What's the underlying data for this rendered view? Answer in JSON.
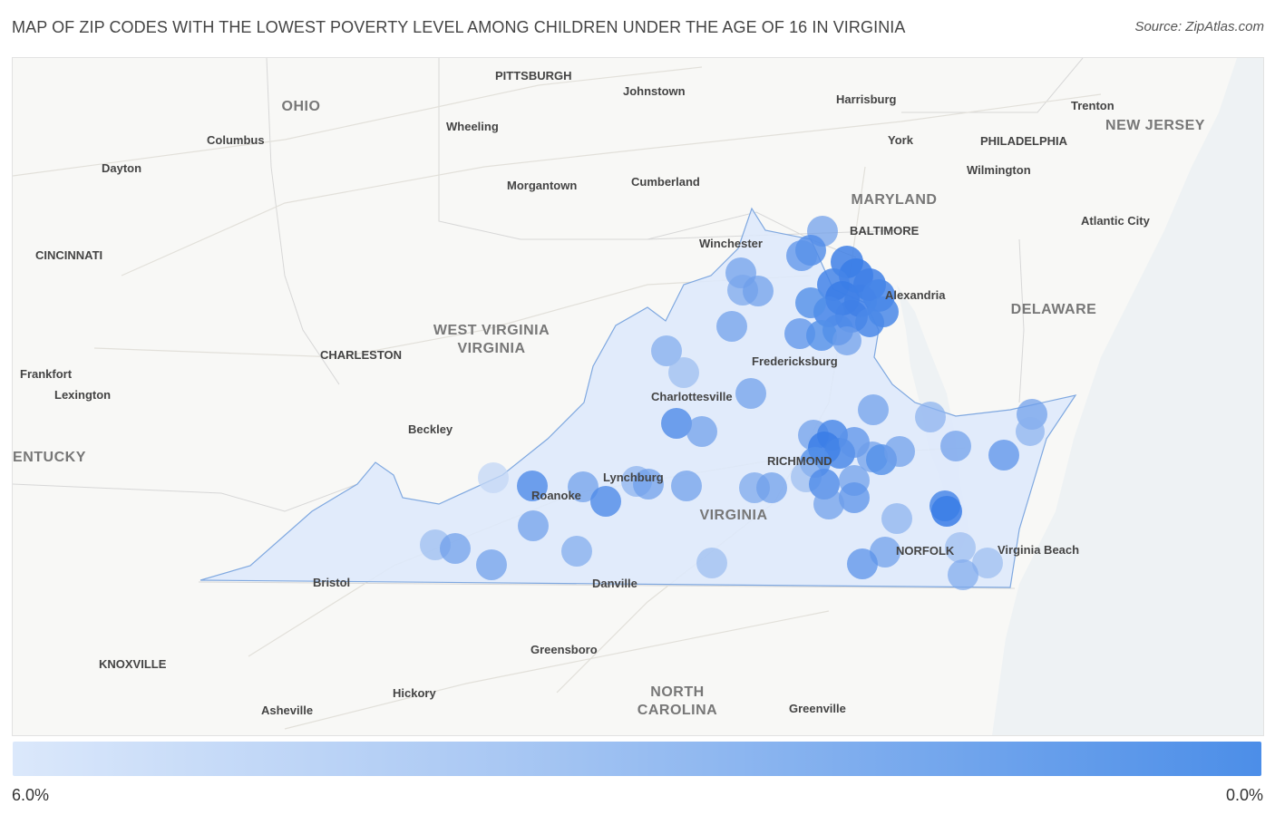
{
  "header": {
    "title": "MAP OF ZIP CODES WITH THE LOWEST POVERTY LEVEL AMONG CHILDREN UNDER THE AGE OF 16 IN VIRGINIA",
    "source": "Source: ZipAtlas.com"
  },
  "legend": {
    "min_label": "6.0%",
    "max_label": "0.0%",
    "color_low": "#dbe8fb",
    "color_high": "#4c8ee8"
  },
  "map": {
    "state_fill": "#dde9fb",
    "state_stroke": "#7fa8e0",
    "regions": [
      "OHIO",
      "WEST VIRGINIA",
      "MARYLAND",
      "DELAWARE",
      "NEW JERSEY",
      "KENTUCKY",
      "VIRGINIA",
      "NORTH CAROLINA"
    ],
    "cities": [
      "PITTSBURGH",
      "Johnstown",
      "Harrisburg",
      "Trenton",
      "Wheeling",
      "Columbus",
      "York",
      "PHILADELPHIA",
      "Dayton",
      "Wilmington",
      "Cumberland",
      "Morgantown",
      "BALTIMORE",
      "Atlantic City",
      "Winchester",
      "CINCINNATI",
      "Alexandria",
      "CHARLESTON",
      "Fredericksburg",
      "Frankfort",
      "Lexington",
      "Charlottesville",
      "Beckley",
      "RICHMOND",
      "Lynchburg",
      "Roanoke",
      "NORFOLK",
      "Virginia Beach",
      "Bristol",
      "Danville",
      "Greensboro",
      "KNOXVILLE",
      "Hickory",
      "Asheville",
      "Greenville"
    ]
  }
}
